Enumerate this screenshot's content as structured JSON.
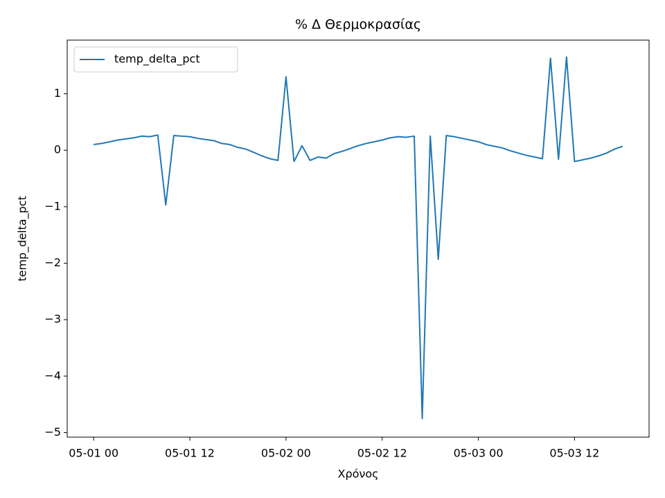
{
  "chart_data": {
    "type": "line",
    "title": "% Δ Θερμοκρασίας",
    "xlabel": "Χρόνος",
    "ylabel": "temp_delta_pct",
    "x": [
      "05-01 00",
      "05-01 01",
      "05-01 02",
      "05-01 03",
      "05-01 04",
      "05-01 05",
      "05-01 06",
      "05-01 07",
      "05-01 08",
      "05-01 09",
      "05-01 10",
      "05-01 11",
      "05-01 12",
      "05-01 13",
      "05-01 14",
      "05-01 15",
      "05-01 16",
      "05-01 17",
      "05-01 18",
      "05-01 19",
      "05-01 20",
      "05-01 21",
      "05-01 22",
      "05-01 23",
      "05-02 00",
      "05-02 01",
      "05-02 02",
      "05-02 03",
      "05-02 04",
      "05-02 05",
      "05-02 06",
      "05-02 07",
      "05-02 08",
      "05-02 09",
      "05-02 10",
      "05-02 11",
      "05-02 12",
      "05-02 13",
      "05-02 14",
      "05-02 15",
      "05-02 16",
      "05-02 17",
      "05-02 18",
      "05-02 19",
      "05-02 20",
      "05-02 21",
      "05-02 22",
      "05-02 23",
      "05-03 00",
      "05-03 01",
      "05-03 02",
      "05-03 03",
      "05-03 04",
      "05-03 05",
      "05-03 06",
      "05-03 07",
      "05-03 08",
      "05-03 09",
      "05-03 10",
      "05-03 11",
      "05-03 12",
      "05-03 13",
      "05-03 14",
      "05-03 15",
      "05-03 16",
      "05-03 17",
      "05-03 18"
    ],
    "series": [
      {
        "name": "temp_delta_pct",
        "color": "#1f77b4",
        "values": [
          0.1,
          0.12,
          0.15,
          0.18,
          0.2,
          0.22,
          0.25,
          0.24,
          0.27,
          -0.97,
          0.26,
          0.25,
          0.24,
          0.21,
          0.19,
          0.17,
          0.12,
          0.1,
          0.05,
          0.02,
          -0.04,
          -0.1,
          -0.15,
          -0.18,
          1.3,
          -0.2,
          0.08,
          -0.18,
          -0.12,
          -0.14,
          -0.06,
          -0.02,
          0.03,
          0.08,
          0.12,
          0.15,
          0.18,
          0.22,
          0.24,
          0.23,
          0.25,
          -4.75,
          0.25,
          -1.93,
          0.26,
          0.24,
          0.21,
          0.18,
          0.15,
          0.1,
          0.07,
          0.04,
          -0.01,
          -0.05,
          -0.09,
          -0.12,
          -0.15,
          1.63,
          -0.16,
          1.65,
          -0.2,
          -0.17,
          -0.14,
          -0.1,
          -0.05,
          0.02,
          0.07
        ]
      }
    ],
    "xticks": [
      "05-01 00",
      "05-01 12",
      "05-02 00",
      "05-02 12",
      "05-03 00",
      "05-03 12"
    ],
    "ylim": [
      -5.08,
      1.95
    ],
    "yticks": [
      {
        "value": -5,
        "label": "−5"
      },
      {
        "value": -4,
        "label": "−4"
      },
      {
        "value": -3,
        "label": "−3"
      },
      {
        "value": -2,
        "label": "−2"
      },
      {
        "value": -1,
        "label": "−1"
      },
      0,
      1
    ],
    "legend": "upper left",
    "grid": false
  }
}
